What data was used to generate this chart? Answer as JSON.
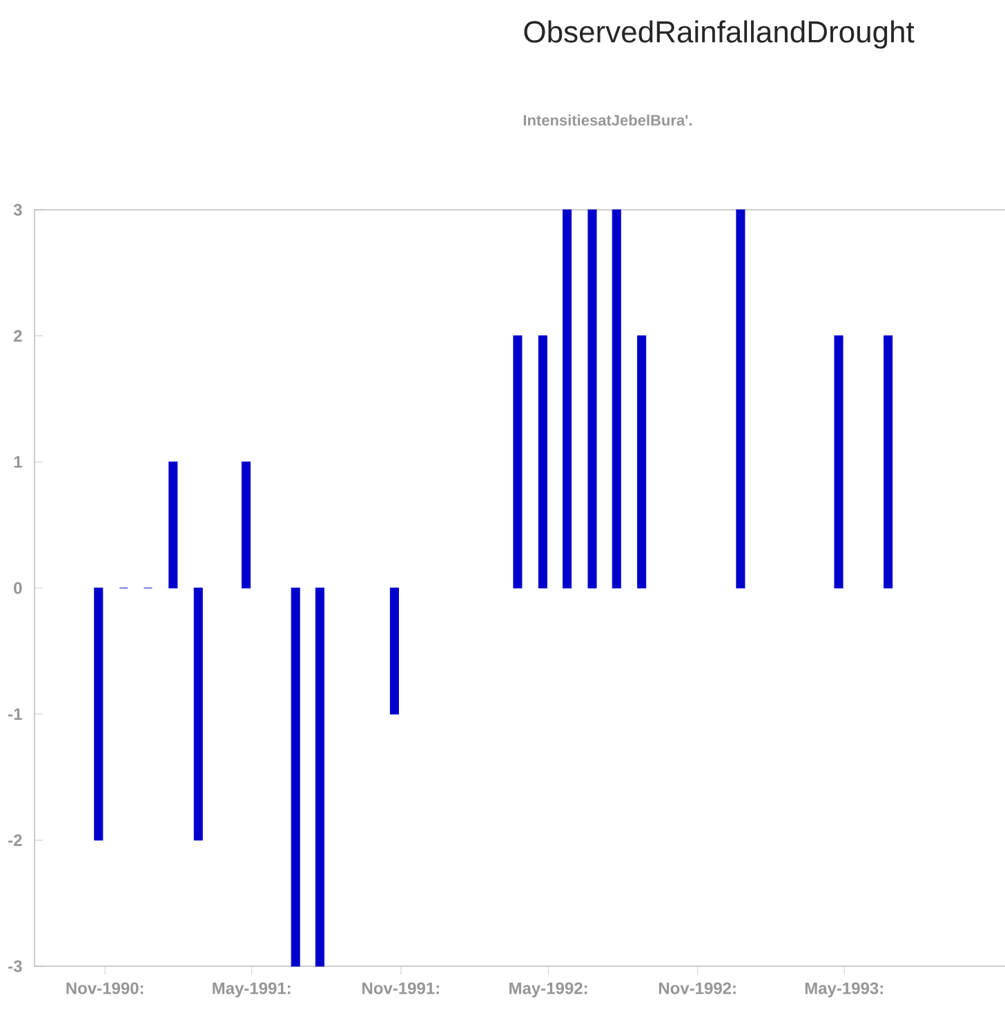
{
  "chart_data": {
    "type": "bar",
    "title": "ObservedRainfallandDrought",
    "subtitle": "IntensitiesatJebelBura'.",
    "x": [
      "1990-10-24",
      "1990-11-24",
      "1990-12-24",
      "1991-01-24",
      "1991-02-24",
      "1991-04-24",
      "1991-06-24",
      "1991-07-24",
      "1991-10-24",
      "1992-03-24",
      "1992-04-24",
      "1992-05-24",
      "1992-06-24",
      "1992-07-24",
      "1992-08-24",
      "1992-12-24",
      "1993-04-24",
      "1993-06-24"
    ],
    "values": [
      -2,
      0,
      0,
      1,
      -2,
      1,
      -3,
      -3,
      -1,
      2,
      2,
      3,
      3,
      3,
      2,
      3,
      2,
      2
    ],
    "color": "#0000cc",
    "xlim": [
      "1990-08-06",
      "1993-11-22"
    ],
    "xticks": [
      {
        "value": "1990-11-01",
        "label": "Nov-1990:"
      },
      {
        "value": "1991-05-01",
        "label": "May-1991:"
      },
      {
        "value": "1991-11-01",
        "label": "Nov-1991:"
      },
      {
        "value": "1992-05-01",
        "label": "May-1992:"
      },
      {
        "value": "1992-11-01",
        "label": "Nov-1992:"
      },
      {
        "value": "1993-05-01",
        "label": "May-1993:"
      }
    ],
    "ylim": [
      -3,
      3
    ],
    "yticks": [
      -3,
      -2,
      -1,
      0,
      1,
      2,
      3
    ]
  }
}
